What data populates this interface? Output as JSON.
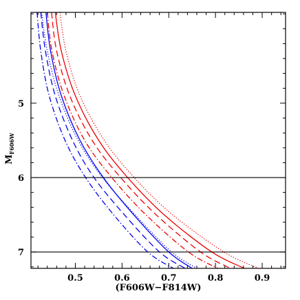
{
  "chart_data": {
    "type": "line",
    "xlabel": "(F606W−F814W)",
    "ylabel_main": "M",
    "ylabel_sub": "F606W",
    "xlim": [
      0.405,
      0.95
    ],
    "ylim": [
      7.22,
      3.78
    ],
    "y_inverted": true,
    "grid": false,
    "x_ticks_major": [
      0.5,
      0.6,
      0.7,
      0.8,
      0.9
    ],
    "x_tick_labels": [
      "0.5",
      "0.6",
      "0.7",
      "0.8",
      "0.9"
    ],
    "y_ticks_major": [
      5,
      6,
      7
    ],
    "y_tick_labels": [
      "5",
      "6",
      "7"
    ],
    "x_ticks_minor_step": 0.02,
    "y_ticks_minor_step": 0.2,
    "hlines": [
      6,
      7
    ],
    "hline_color": "#000000",
    "series": [
      {
        "color": "#0000ee",
        "dash": "solid",
        "points": [
          [
            0.437,
            3.78
          ],
          [
            0.447,
            4.3
          ],
          [
            0.47,
            4.9
          ],
          [
            0.51,
            5.5
          ],
          [
            0.56,
            6.0
          ],
          [
            0.625,
            6.5
          ],
          [
            0.7,
            7.0
          ],
          [
            0.75,
            7.22
          ]
        ]
      },
      {
        "color": "#0000ee",
        "dash": "dotted",
        "points": [
          [
            0.428,
            3.78
          ],
          [
            0.44,
            4.3
          ],
          [
            0.465,
            4.9
          ],
          [
            0.506,
            5.5
          ],
          [
            0.558,
            6.0
          ],
          [
            0.628,
            6.5
          ],
          [
            0.706,
            7.0
          ],
          [
            0.76,
            7.22
          ]
        ]
      },
      {
        "color": "#0000ee",
        "dash": "dashed",
        "points": [
          [
            0.426,
            3.78
          ],
          [
            0.436,
            4.3
          ],
          [
            0.457,
            4.9
          ],
          [
            0.494,
            5.5
          ],
          [
            0.54,
            6.0
          ],
          [
            0.605,
            6.5
          ],
          [
            0.68,
            7.0
          ],
          [
            0.735,
            7.22
          ]
        ]
      },
      {
        "color": "#0000ee",
        "dash": "dashdot",
        "points": [
          [
            0.418,
            3.78
          ],
          [
            0.426,
            4.3
          ],
          [
            0.444,
            4.9
          ],
          [
            0.478,
            5.5
          ],
          [
            0.522,
            6.0
          ],
          [
            0.582,
            6.5
          ],
          [
            0.655,
            7.0
          ],
          [
            0.71,
            7.22
          ]
        ]
      },
      {
        "color": "#ee0000",
        "dash": "solid",
        "points": [
          [
            0.457,
            3.78
          ],
          [
            0.47,
            4.3
          ],
          [
            0.5,
            4.9
          ],
          [
            0.55,
            5.5
          ],
          [
            0.612,
            6.0
          ],
          [
            0.69,
            6.5
          ],
          [
            0.792,
            7.0
          ],
          [
            0.862,
            7.22
          ]
        ]
      },
      {
        "color": "#ee0000",
        "dash": "dotted",
        "points": [
          [
            0.467,
            3.78
          ],
          [
            0.48,
            4.3
          ],
          [
            0.51,
            4.9
          ],
          [
            0.562,
            5.5
          ],
          [
            0.626,
            6.0
          ],
          [
            0.708,
            6.5
          ],
          [
            0.818,
            7.0
          ],
          [
            0.892,
            7.22
          ]
        ]
      },
      {
        "color": "#ee0000",
        "dash": "dashed",
        "points": [
          [
            0.449,
            3.78
          ],
          [
            0.46,
            4.3
          ],
          [
            0.488,
            4.9
          ],
          [
            0.536,
            5.5
          ],
          [
            0.597,
            6.0
          ],
          [
            0.673,
            6.5
          ],
          [
            0.768,
            7.0
          ],
          [
            0.832,
            7.22
          ]
        ]
      },
      {
        "color": "#ee0000",
        "dash": "dashdot",
        "points": [
          [
            0.44,
            3.78
          ],
          [
            0.45,
            4.3
          ],
          [
            0.476,
            4.9
          ],
          [
            0.52,
            5.5
          ],
          [
            0.578,
            6.0
          ],
          [
            0.651,
            6.5
          ],
          [
            0.742,
            7.0
          ],
          [
            0.805,
            7.22
          ]
        ]
      }
    ]
  }
}
